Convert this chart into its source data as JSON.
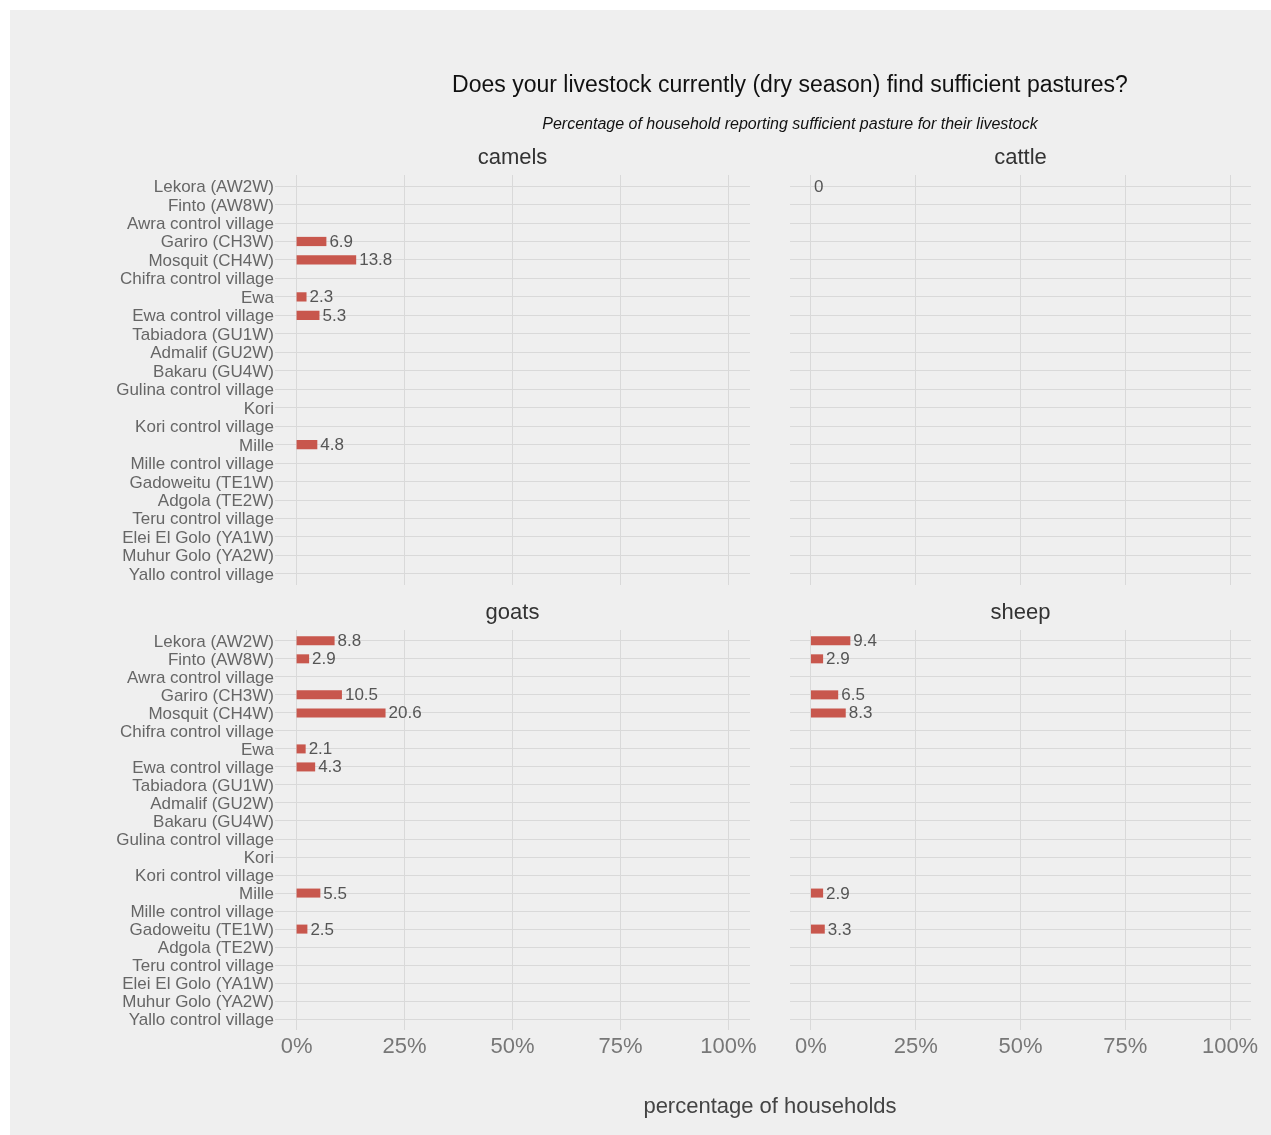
{
  "chart_data": [
    {
      "type": "bar",
      "orientation": "horizontal",
      "title": "camels",
      "annotations": [
        "Does your livestock currently (dry season) find sufficient pastures?",
        "Percentage of household reporting sufficient pasture for their livestock"
      ],
      "categories": [
        "Lekora (AW2W)",
        "Finto (AW8W)",
        "Awra control village",
        "Gariro (CH3W)",
        "Mosquit (CH4W)",
        "Chifra control village",
        "Ewa",
        "Ewa control village",
        "Tabiadora (GU1W)",
        "Admalif (GU2W)",
        "Bakaru (GU4W)",
        "Gulina control village",
        "Kori",
        "Kori control village",
        "Mille",
        "Mille control village",
        "Gadoweitu (TE1W)",
        "Adgola (TE2W)",
        "Teru control village",
        "Elei El Golo (YA1W)",
        "Muhur Golo (YA2W)",
        "Yallo control village"
      ],
      "values": [
        null,
        null,
        null,
        6.9,
        13.8,
        null,
        2.3,
        5.3,
        null,
        null,
        null,
        null,
        null,
        null,
        4.8,
        null,
        null,
        null,
        null,
        null,
        null,
        null
      ],
      "color": "#c8574d",
      "data_labels": true,
      "grid": true,
      "tick_labels": "y",
      "xlim": [
        -5,
        105
      ],
      "xticks": [
        0,
        25,
        50,
        75,
        100
      ]
    },
    {
      "type": "bar",
      "orientation": "horizontal",
      "title": "cattle",
      "categories": [
        null,
        null,
        null,
        null,
        null,
        null,
        null,
        null,
        null,
        null,
        null,
        null,
        null,
        null,
        null,
        null,
        null,
        null,
        null,
        null,
        null,
        null
      ],
      "values": [
        0,
        null,
        null,
        null,
        null,
        null,
        null,
        null,
        null,
        null,
        null,
        null,
        null,
        null,
        null,
        null,
        null,
        null,
        null,
        null,
        null,
        null
      ],
      "color": "#c8574d",
      "data_labels": true,
      "grid": true,
      "tick_labels": false,
      "xlim": [
        -5,
        105
      ],
      "xticks": [
        0,
        25,
        50,
        75,
        100
      ]
    },
    {
      "type": "bar",
      "orientation": "horizontal",
      "title": "goats",
      "categories": [
        "Lekora (AW2W)",
        "Finto (AW8W)",
        "Awra control village",
        "Gariro (CH3W)",
        "Mosquit (CH4W)",
        "Chifra control village",
        "Ewa",
        "Ewa control village",
        "Tabiadora (GU1W)",
        "Admalif (GU2W)",
        "Bakaru (GU4W)",
        "Gulina control village",
        "Kori",
        "Kori control village",
        "Mille",
        "Mille control village",
        "Gadoweitu (TE1W)",
        "Adgola (TE2W)",
        "Teru control village",
        "Elei El Golo (YA1W)",
        "Muhur Golo (YA2W)",
        "Yallo control village"
      ],
      "values": [
        8.8,
        2.9,
        null,
        10.5,
        20.6,
        null,
        2.1,
        4.3,
        null,
        null,
        null,
        null,
        null,
        null,
        5.5,
        null,
        2.5,
        null,
        null,
        null,
        null,
        null
      ],
      "color": "#c8574d",
      "data_labels": true,
      "grid": true,
      "xlim": [
        -5,
        105
      ],
      "xticks": [
        {
          "value": 0,
          "label": "0%"
        },
        {
          "value": 25,
          "label": "25%"
        },
        {
          "value": 50,
          "label": "50%"
        },
        {
          "value": 75,
          "label": "75%"
        },
        {
          "value": 100,
          "label": "100%"
        }
      ]
    },
    {
      "type": "bar",
      "orientation": "horizontal",
      "title": "sheep",
      "xlabel": "percentage of households",
      "categories": [
        null,
        null,
        null,
        null,
        null,
        null,
        null,
        null,
        null,
        null,
        null,
        null,
        null,
        null,
        null,
        null,
        null,
        null,
        null,
        null,
        null,
        null
      ],
      "values": [
        9.4,
        2.9,
        null,
        6.5,
        8.3,
        null,
        null,
        null,
        null,
        null,
        null,
        null,
        null,
        null,
        2.9,
        null,
        3.3,
        null,
        null,
        null,
        null,
        null
      ],
      "color": "#c8574d",
      "data_labels": true,
      "grid": true,
      "tick_labels": "x",
      "xlim": [
        -5,
        105
      ],
      "xticks": [
        {
          "value": 0,
          "label": "0%"
        },
        {
          "value": 25,
          "label": "25%"
        },
        {
          "value": 50,
          "label": "50%"
        },
        {
          "value": 75,
          "label": "75%"
        },
        {
          "value": 100,
          "label": "100%"
        }
      ]
    }
  ]
}
